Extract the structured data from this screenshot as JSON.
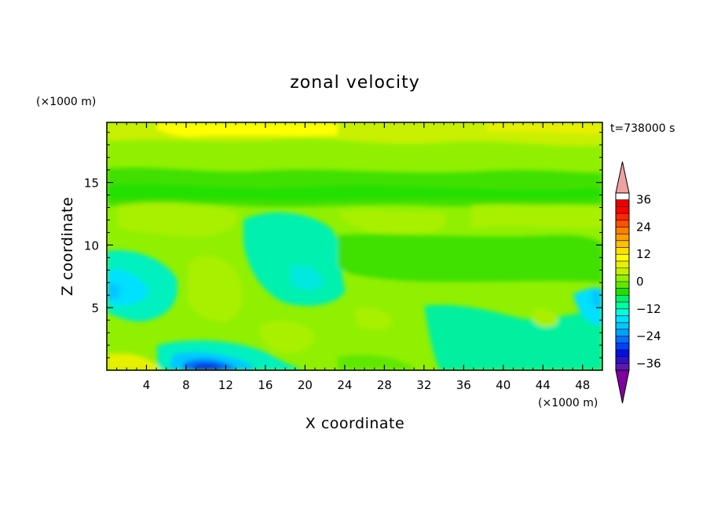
{
  "chart_data": {
    "type": "heatmap",
    "title": "zonal velocity",
    "xlabel": "X coordinate",
    "ylabel": "Z coordinate",
    "x_unit": "(×1000 m)",
    "y_unit": "(×1000 m)",
    "time_label": "t=738000 s",
    "xlim": [
      0,
      50
    ],
    "ylim": [
      0,
      19.8
    ],
    "x_ticks": [
      4,
      8,
      12,
      16,
      20,
      24,
      28,
      32,
      36,
      40,
      44,
      48
    ],
    "y_ticks": [
      5,
      10,
      15
    ],
    "colorbar": {
      "levels": [
        -42,
        -39,
        -36,
        -33,
        -30,
        -27,
        -24,
        -21,
        -18,
        -15,
        -12,
        -9,
        -6,
        -3,
        0,
        3,
        6,
        9,
        12,
        15,
        18,
        21,
        24,
        27,
        30,
        33,
        36,
        39,
        42
      ],
      "labels": [
        36,
        24,
        12,
        0,
        -12,
        -24,
        -36
      ],
      "colors": [
        "#8000a0",
        "#5a1ab0",
        "#3010c8",
        "#0010e0",
        "#0040ff",
        "#0070ff",
        "#00a0ff",
        "#00c8ff",
        "#00e0ff",
        "#00ffe0",
        "#00ffa0",
        "#00f070",
        "#20e000",
        "#60e800",
        "#90f000",
        "#c0f000",
        "#e8f000",
        "#ffff00",
        "#ffe000",
        "#ffc000",
        "#ffa000",
        "#ff8000",
        "#ff5000",
        "#ff2800",
        "#ff0000",
        "#e80000",
        "#f0a0a0"
      ]
    },
    "grid": false,
    "colorbar_position": "right"
  }
}
